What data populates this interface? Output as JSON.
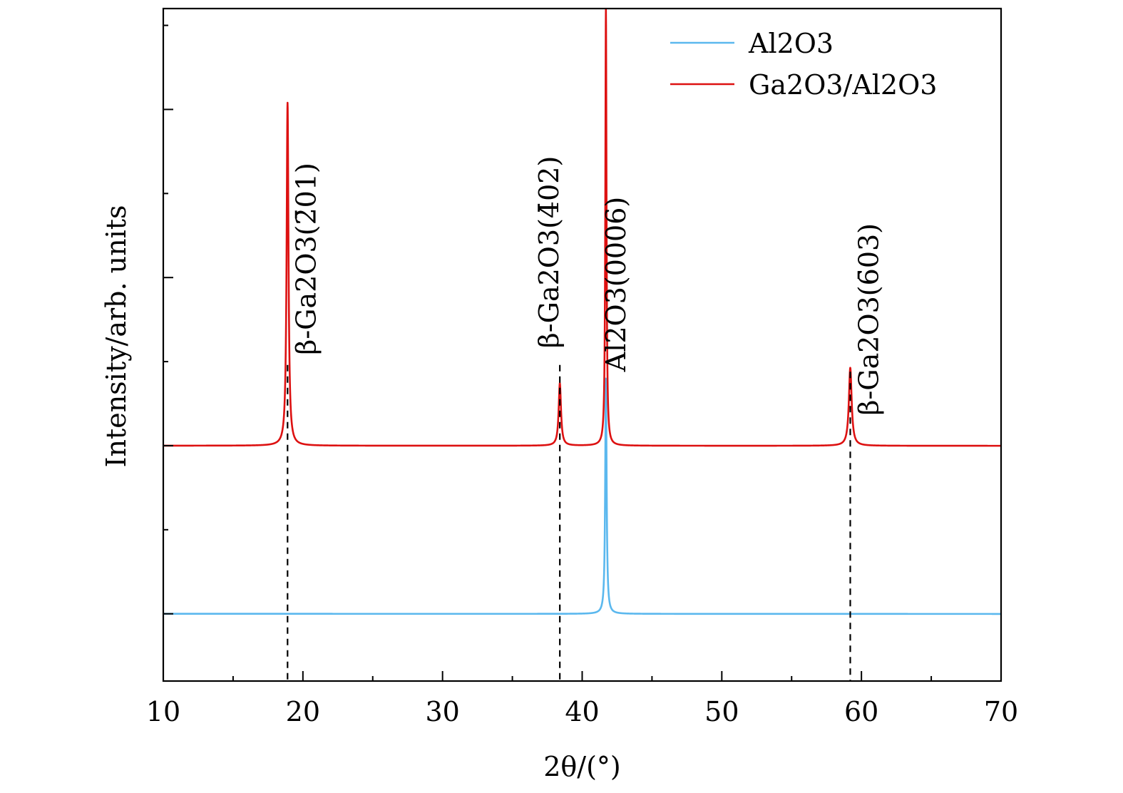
{
  "chart_data": {
    "type": "line",
    "title": "",
    "xlabel": "2θ/(°)",
    "ylabel": "Intensity/arb. units",
    "xlim": [
      10,
      70
    ],
    "ylim": [
      0,
      100
    ],
    "xticks": [
      10,
      20,
      30,
      40,
      50,
      60,
      70
    ],
    "xtick_labels": [
      "10",
      "20",
      "30",
      "40",
      "50",
      "60",
      "70"
    ],
    "yticks_unlabeled": [
      10,
      22.5,
      35,
      47.5,
      60,
      72.5,
      85,
      97.5
    ],
    "grid": false,
    "legend_position": "top-right",
    "series": [
      {
        "name": "Al2O3",
        "color": "#5BB8EE",
        "baseline": 10,
        "peaks": [
          {
            "x": 41.7,
            "height": 35,
            "width": 0.06
          }
        ]
      },
      {
        "name": "Ga2O3/Al2O3",
        "color": "#DD1111",
        "baseline": 35,
        "peaks": [
          {
            "x": 18.9,
            "height": 51,
            "width": 0.08
          },
          {
            "x": 38.4,
            "height": 9.3,
            "width": 0.1
          },
          {
            "x": 41.7,
            "height": 65,
            "width": 0.05
          },
          {
            "x": 59.2,
            "height": 11.6,
            "width": 0.12
          }
        ]
      }
    ],
    "reference_lines": [
      {
        "x": 18.9,
        "y_top": 47,
        "style": "dashed"
      },
      {
        "x": 38.4,
        "y_top": 47,
        "style": "dashed"
      },
      {
        "x": 59.2,
        "y_top": 46,
        "style": "dashed"
      }
    ],
    "annotations": [
      {
        "text": "β-Ga2O3(2̄01)",
        "x": 20.9,
        "y": 48.5,
        "rotation": -90
      },
      {
        "text": "β-Ga2O3(4̄02)",
        "x": 38.3,
        "y": 49.5,
        "rotation": -90
      },
      {
        "text": "Al2O3(0006)",
        "x": 43.1,
        "y": 46,
        "rotation": -90
      },
      {
        "text": "β-Ga2O3(6̄03)",
        "x": 61.2,
        "y": 39.5,
        "rotation": -90
      }
    ]
  }
}
